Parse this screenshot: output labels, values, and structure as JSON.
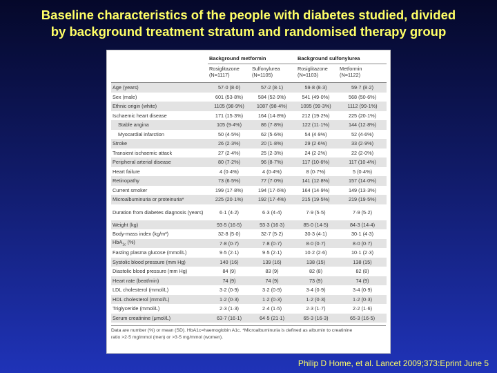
{
  "slide": {
    "title_line1": "Baseline characteristics of the people with diabetes studied, divided",
    "title_line2": "by background treatment stratum and randomised therapy group",
    "citation": "Philip D Home, et al. Lancet 2009;373:Eprint June 5"
  },
  "table": {
    "groups": [
      "Background metformin",
      "Background sulfonylurea"
    ],
    "columns": [
      {
        "name": "Rosiglitazone",
        "n": "(N=1117)"
      },
      {
        "name": "Sulfonylurea",
        "n": "(N=1105)"
      },
      {
        "name": "Rosiglitazone",
        "n": "(N=1103)"
      },
      {
        "name": "Metformin",
        "n": "(N=1122)"
      }
    ],
    "rows": [
      {
        "label": "Age (years)",
        "values": [
          "57·0 (8·0)",
          "57·2 (8·1)",
          "59·8 (8·3)",
          "59·7 (8·2)"
        ]
      },
      {
        "label": "Sex (male)",
        "values": [
          "601 (53·8%)",
          "584 (52·9%)",
          "541 (49·0%)",
          "568 (50·6%)"
        ]
      },
      {
        "label": "Ethnic origin (white)",
        "values": [
          "1105 (98·9%)",
          "1087 (98·4%)",
          "1095 (99·3%)",
          "1112 (99·1%)"
        ]
      },
      {
        "label": "Ischaemic heart disease",
        "values": [
          "171 (15·3%)",
          "164 (14·8%)",
          "212 (19·2%)",
          "225 (20·1%)"
        ]
      },
      {
        "label": "Stable angina",
        "indent": true,
        "values": [
          "105 (9·4%)",
          "86 (7·8%)",
          "122 (11·1%)",
          "144 (12·8%)"
        ]
      },
      {
        "label": "Myocardial infarction",
        "indent": true,
        "values": [
          "50 (4·5%)",
          "62 (5·6%)",
          "54 (4·9%)",
          "52 (4·6%)"
        ]
      },
      {
        "label": "Stroke",
        "values": [
          "26 (2·3%)",
          "20 (1·8%)",
          "29 (2·6%)",
          "33 (2·9%)"
        ]
      },
      {
        "label": "Transient ischaemic attack",
        "values": [
          "27 (2·4%)",
          "25 (2·3%)",
          "24 (2·2%)",
          "22 (2·0%)"
        ]
      },
      {
        "label": "Peripheral arterial disease",
        "values": [
          "80 (7·2%)",
          "96 (8·7%)",
          "117 (10·6%)",
          "117 (10·4%)"
        ]
      },
      {
        "label": "Heart failure",
        "values": [
          "4 (0·4%)",
          "4 (0·4%)",
          "8 (0·7%)",
          "5 (0·4%)"
        ]
      },
      {
        "label": "Retinopathy",
        "values": [
          "73 (6·5%)",
          "77 (7·0%)",
          "141 (12·8%)",
          "157 (14·0%)"
        ]
      },
      {
        "label": "Current smoker",
        "values": [
          "199 (17·8%)",
          "194 (17·6%)",
          "164 (14·9%)",
          "149 (13·3%)"
        ]
      },
      {
        "label": "Microalbuminuria or proteinuria*",
        "values": [
          "225 (20·1%)",
          "192 (17·4%)",
          "215 (19·5%)",
          "219 (19·5%)"
        ]
      },
      {
        "label": "Duration from diabetes diagnosis (years)",
        "tall": true,
        "values": [
          "6·1 (4·2)",
          "6·3 (4·4)",
          "7·9 (5·5)",
          "7·9 (5·2)"
        ]
      },
      {
        "label": "Weight (kg)",
        "values": [
          "93·5 (16·5)",
          "93·3 (16·3)",
          "85·0 (14·5)",
          "84·3 (14·4)"
        ]
      },
      {
        "label": "Body-mass index (kg/m²)",
        "values": [
          "32·8 (5·0)",
          "32·7 (5·2)",
          "30·3 (4·1)",
          "30·1 (4·3)"
        ]
      },
      {
        "label": "HbA",
        "label_sub": "1c",
        "label_suffix": " (%)",
        "values": [
          "7·8 (0·7)",
          "7·8 (0·7)",
          "8·0 (0·7)",
          "8·0 (0·7)"
        ]
      },
      {
        "label": "Fasting plasma glucose (mmol/L)",
        "values": [
          "9·5 (2·1)",
          "9·5 (2·1)",
          "10·2 (2·6)",
          "10·1 (2·3)"
        ]
      },
      {
        "label": "Systolic blood pressure (mm Hg)",
        "values": [
          "140 (16)",
          "139 (16)",
          "138 (15)",
          "138 (15)"
        ]
      },
      {
        "label": "Diastolic blood pressure (mm Hg)",
        "values": [
          "84 (9)",
          "83 (9)",
          "82 (8)",
          "82 (8)"
        ]
      },
      {
        "label": "Heart rate (beat/min)",
        "values": [
          "74 (9)",
          "74 (9)",
          "73 (9)",
          "74 (9)"
        ]
      },
      {
        "label": "LDL cholesterol (mmol/L)",
        "values": [
          "3·2 (0·9)",
          "3·2 (0·9)",
          "3·4 (0·9)",
          "3·4 (0·9)"
        ]
      },
      {
        "label": "HDL cholesterol (mmol/L)",
        "values": [
          "1·2 (0·3)",
          "1·2 (0·3)",
          "1·2 (0·3)",
          "1·2 (0·3)"
        ]
      },
      {
        "label": "Triglyceride (mmol/L)",
        "values": [
          "2·3 (1·3)",
          "2·4 (1·5)",
          "2·3 (1·7)",
          "2·2 (1·6)"
        ]
      },
      {
        "label": "Serum creatinine (μmol/L)",
        "values": [
          "63·7 (16·1)",
          "64·5 (21·1)",
          "65·3 (16·3)",
          "65·3 (16·5)"
        ]
      }
    ],
    "footnote_line1": "Data are number (%) or mean (SD). HbA1c=haemoglobin A1c. *Microalbuminuria is defined as albumin to creatinine",
    "footnote_line2": "ratio >2·5 mg/mmol (men) or >3·5 mg/mmol (women)."
  }
}
